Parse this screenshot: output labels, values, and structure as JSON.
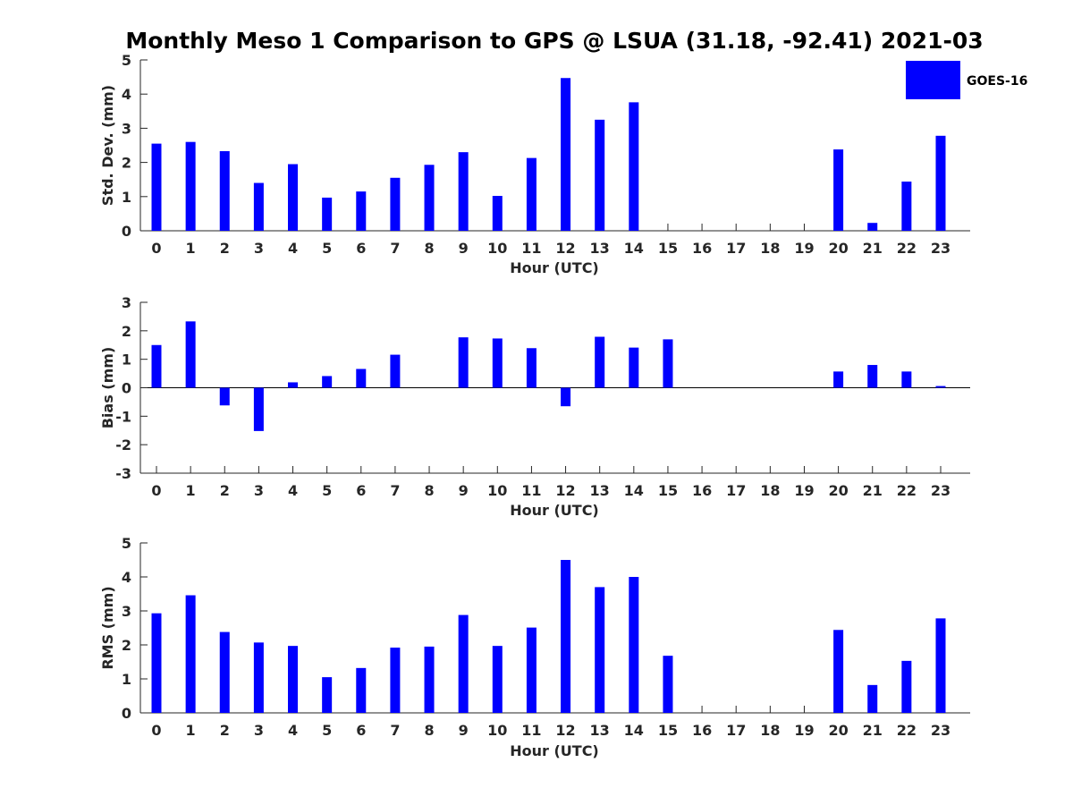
{
  "title": "Monthly Meso 1 Comparison to GPS @ LSUA (31.18, -92.41) 2021-03",
  "legend": {
    "label": "GOES-16",
    "color": "#0000ff",
    "placement": "top-right"
  },
  "chart_data": [
    {
      "type": "bar",
      "ylabel": "Std. Dev. (mm)",
      "xlabel": "Hour (UTC)",
      "ylim": [
        0,
        5
      ],
      "yticks": [
        0,
        1,
        2,
        3,
        4,
        5
      ],
      "categories": [
        "0",
        "1",
        "2",
        "3",
        "4",
        "5",
        "6",
        "7",
        "8",
        "9",
        "10",
        "11",
        "12",
        "13",
        "14",
        "15",
        "16",
        "17",
        "18",
        "19",
        "20",
        "21",
        "22",
        "23"
      ],
      "series": [
        {
          "name": "GOES-16",
          "values": [
            2.55,
            2.6,
            2.33,
            1.4,
            1.95,
            0.97,
            1.15,
            1.55,
            1.93,
            2.3,
            1.02,
            2.13,
            4.47,
            3.25,
            3.76,
            null,
            null,
            null,
            null,
            null,
            2.38,
            0.23,
            1.44,
            2.78
          ]
        }
      ]
    },
    {
      "type": "bar",
      "ylabel": "Bias (mm)",
      "xlabel": "Hour (UTC)",
      "ylim": [
        -3,
        3
      ],
      "yticks": [
        -3,
        -2,
        -1,
        0,
        1,
        2,
        3
      ],
      "categories": [
        "0",
        "1",
        "2",
        "3",
        "4",
        "5",
        "6",
        "7",
        "8",
        "9",
        "10",
        "11",
        "12",
        "13",
        "14",
        "15",
        "16",
        "17",
        "18",
        "19",
        "20",
        "21",
        "22",
        "23"
      ],
      "series": [
        {
          "name": "GOES-16",
          "values": [
            1.5,
            2.33,
            -0.62,
            -1.52,
            0.19,
            0.41,
            0.66,
            1.16,
            0,
            1.77,
            1.73,
            1.39,
            -0.65,
            1.79,
            1.41,
            1.7,
            null,
            null,
            null,
            null,
            0.57,
            0.8,
            0.57,
            0.06
          ]
        }
      ]
    },
    {
      "type": "bar",
      "ylabel": "RMS (mm)",
      "xlabel": "Hour (UTC)",
      "ylim": [
        0,
        5
      ],
      "yticks": [
        0,
        1,
        2,
        3,
        4,
        5
      ],
      "categories": [
        "0",
        "1",
        "2",
        "3",
        "4",
        "5",
        "6",
        "7",
        "8",
        "9",
        "10",
        "11",
        "12",
        "13",
        "14",
        "15",
        "16",
        "17",
        "18",
        "19",
        "20",
        "21",
        "22",
        "23"
      ],
      "series": [
        {
          "name": "GOES-16",
          "values": [
            2.93,
            3.46,
            2.38,
            2.07,
            1.97,
            1.05,
            1.32,
            1.92,
            1.95,
            2.88,
            1.97,
            2.51,
            4.5,
            3.7,
            4.0,
            1.68,
            null,
            null,
            null,
            null,
            2.44,
            0.82,
            1.53,
            2.78
          ]
        }
      ]
    }
  ]
}
